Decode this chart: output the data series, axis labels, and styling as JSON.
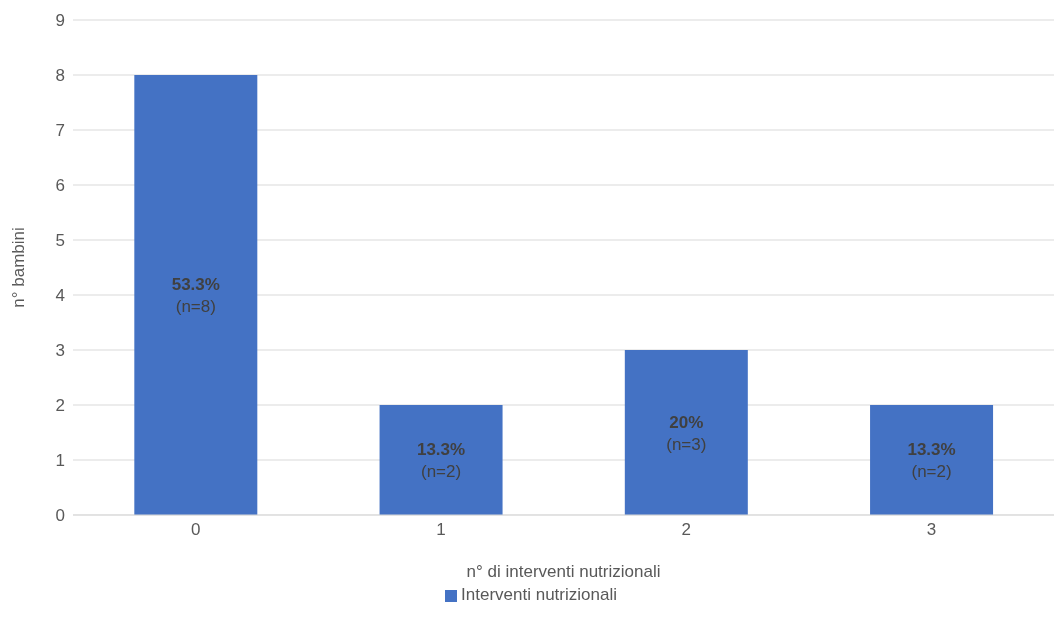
{
  "chart_data": {
    "type": "bar",
    "xlabel": "n° di interventi nutrizionali",
    "ylabel": "n° bambini",
    "categories": [
      "0",
      "1",
      "2",
      "3"
    ],
    "series": [
      {
        "name": "Interventi nutrizionali",
        "color": "#4472c4",
        "values": [
          8,
          2,
          3,
          2
        ],
        "value_labels": [
          "53.3%\n(n=8)",
          "13.3%\n(n=2)",
          "20%\n(n=3)",
          "13.3%\n(n=2)"
        ]
      }
    ],
    "ylim": [
      0,
      9
    ],
    "yticks": [
      0,
      1,
      2,
      3,
      4,
      5,
      6,
      7,
      8,
      9
    ],
    "grid": "y",
    "legend": "bottom"
  }
}
